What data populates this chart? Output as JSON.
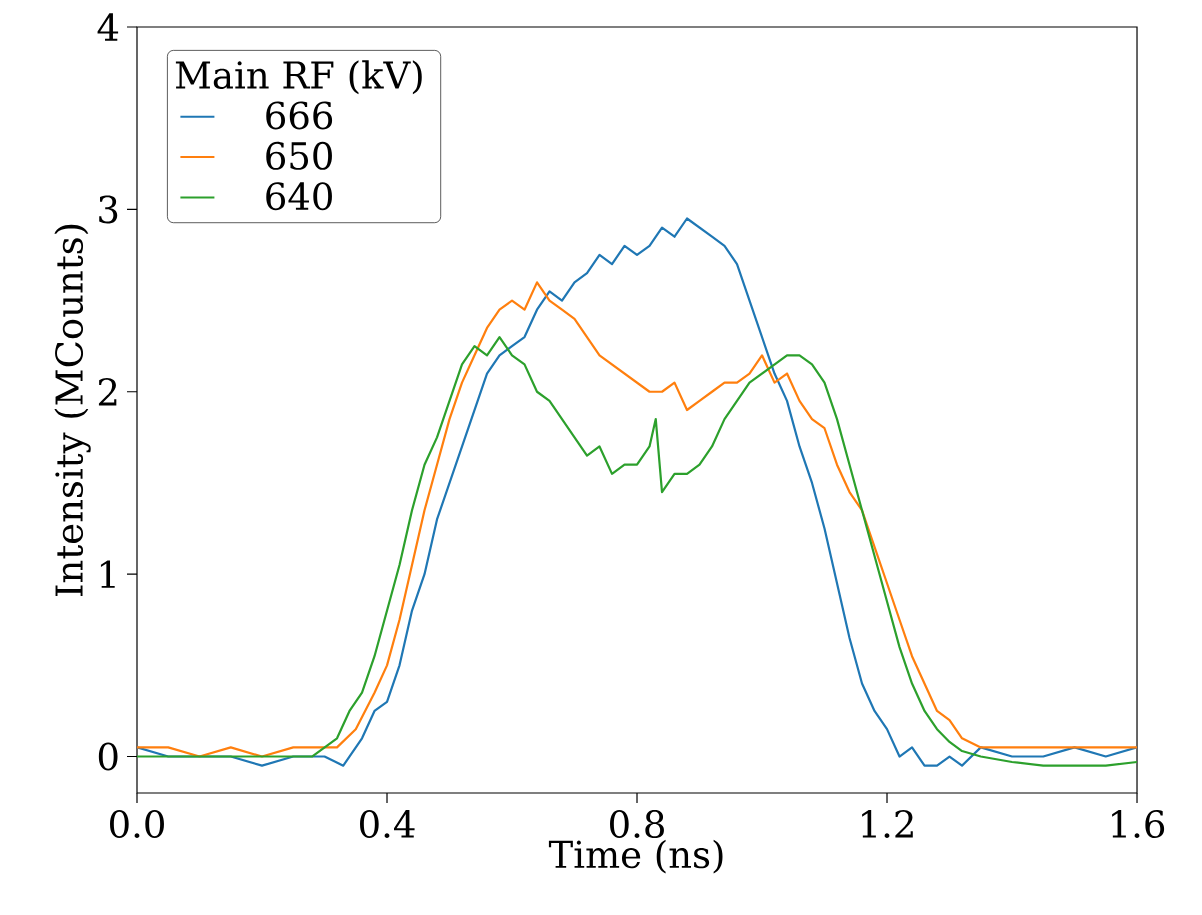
{
  "chart_data": {
    "type": "line",
    "xlabel": "Time (ns)",
    "ylabel": "Intensity (MCounts)",
    "legend_title": "Main RF (kV)",
    "legend": "top left",
    "grid": false,
    "marker": "none",
    "line_style": "solid",
    "xlim": [
      0,
      1.6
    ],
    "ylim": [
      -0.2,
      4
    ],
    "xticks": [
      {
        "value": 0,
        "label": "0.0"
      },
      {
        "value": 0.4,
        "label": "0.4"
      },
      {
        "value": 0.8,
        "label": "0.8"
      },
      {
        "value": 1.2,
        "label": "1.2"
      },
      {
        "value": 1.6,
        "label": "1.6"
      }
    ],
    "yticks": [
      0,
      1,
      2,
      3,
      4
    ],
    "series": [
      {
        "name": "666",
        "color": "#1f77b4",
        "x": [
          0,
          0.05,
          0.1,
          0.15,
          0.2,
          0.25,
          0.3,
          0.33,
          0.36,
          0.38,
          0.4,
          0.42,
          0.44,
          0.46,
          0.48,
          0.5,
          0.52,
          0.54,
          0.56,
          0.58,
          0.6,
          0.62,
          0.64,
          0.66,
          0.68,
          0.7,
          0.72,
          0.74,
          0.76,
          0.78,
          0.8,
          0.82,
          0.84,
          0.86,
          0.88,
          0.9,
          0.92,
          0.94,
          0.96,
          0.98,
          1.0,
          1.02,
          1.04,
          1.06,
          1.08,
          1.1,
          1.12,
          1.14,
          1.16,
          1.18,
          1.2,
          1.22,
          1.24,
          1.26,
          1.28,
          1.3,
          1.32,
          1.35,
          1.4,
          1.45,
          1.5,
          1.55,
          1.6
        ],
        "values": [
          0.05,
          0.0,
          0.0,
          0.0,
          -0.05,
          0.0,
          0.0,
          -0.05,
          0.1,
          0.25,
          0.3,
          0.5,
          0.8,
          1.0,
          1.3,
          1.5,
          1.7,
          1.9,
          2.1,
          2.2,
          2.25,
          2.3,
          2.45,
          2.55,
          2.5,
          2.6,
          2.65,
          2.75,
          2.7,
          2.8,
          2.75,
          2.8,
          2.9,
          2.85,
          2.95,
          2.9,
          2.85,
          2.8,
          2.7,
          2.5,
          2.3,
          2.1,
          1.95,
          1.7,
          1.5,
          1.25,
          0.95,
          0.65,
          0.4,
          0.25,
          0.15,
          0.0,
          0.05,
          -0.05,
          -0.05,
          0.0,
          -0.05,
          0.05,
          0.0,
          0.0,
          0.05,
          0.0,
          0.05
        ]
      },
      {
        "name": "650",
        "color": "#ff7f0e",
        "x": [
          0,
          0.05,
          0.1,
          0.15,
          0.2,
          0.25,
          0.3,
          0.32,
          0.35,
          0.38,
          0.4,
          0.42,
          0.44,
          0.46,
          0.48,
          0.5,
          0.52,
          0.54,
          0.56,
          0.58,
          0.6,
          0.62,
          0.64,
          0.66,
          0.68,
          0.7,
          0.72,
          0.74,
          0.76,
          0.78,
          0.8,
          0.82,
          0.84,
          0.86,
          0.88,
          0.9,
          0.92,
          0.94,
          0.96,
          0.98,
          1.0,
          1.02,
          1.04,
          1.06,
          1.08,
          1.1,
          1.12,
          1.14,
          1.16,
          1.18,
          1.2,
          1.22,
          1.24,
          1.26,
          1.28,
          1.3,
          1.32,
          1.35,
          1.4,
          1.45,
          1.5,
          1.55,
          1.6
        ],
        "values": [
          0.05,
          0.05,
          0.0,
          0.05,
          0.0,
          0.05,
          0.05,
          0.05,
          0.15,
          0.35,
          0.5,
          0.75,
          1.05,
          1.35,
          1.6,
          1.85,
          2.05,
          2.2,
          2.35,
          2.45,
          2.5,
          2.45,
          2.6,
          2.5,
          2.45,
          2.4,
          2.3,
          2.2,
          2.15,
          2.1,
          2.05,
          2.0,
          2.0,
          2.05,
          1.9,
          1.95,
          2.0,
          2.05,
          2.05,
          2.1,
          2.2,
          2.05,
          2.1,
          1.95,
          1.85,
          1.8,
          1.6,
          1.45,
          1.35,
          1.15,
          0.95,
          0.75,
          0.55,
          0.4,
          0.25,
          0.2,
          0.1,
          0.05,
          0.05,
          0.05,
          0.05,
          0.05,
          0.05
        ]
      },
      {
        "name": "640",
        "color": "#2ca02c",
        "x": [
          0,
          0.05,
          0.1,
          0.15,
          0.2,
          0.25,
          0.28,
          0.3,
          0.32,
          0.34,
          0.36,
          0.38,
          0.4,
          0.42,
          0.44,
          0.46,
          0.48,
          0.5,
          0.52,
          0.54,
          0.56,
          0.58,
          0.6,
          0.62,
          0.64,
          0.66,
          0.68,
          0.7,
          0.72,
          0.74,
          0.76,
          0.78,
          0.8,
          0.82,
          0.83,
          0.84,
          0.86,
          0.88,
          0.9,
          0.92,
          0.94,
          0.96,
          0.98,
          1.0,
          1.02,
          1.04,
          1.06,
          1.08,
          1.1,
          1.12,
          1.14,
          1.16,
          1.18,
          1.2,
          1.22,
          1.24,
          1.26,
          1.28,
          1.3,
          1.32,
          1.35,
          1.4,
          1.45,
          1.5,
          1.55,
          1.6
        ],
        "values": [
          0.0,
          0.0,
          0.0,
          0.0,
          0.0,
          0.0,
          0.0,
          0.05,
          0.1,
          0.25,
          0.35,
          0.55,
          0.8,
          1.05,
          1.35,
          1.6,
          1.75,
          1.95,
          2.15,
          2.25,
          2.2,
          2.3,
          2.2,
          2.15,
          2.0,
          1.95,
          1.85,
          1.75,
          1.65,
          1.7,
          1.55,
          1.6,
          1.6,
          1.7,
          1.85,
          1.45,
          1.55,
          1.55,
          1.6,
          1.7,
          1.85,
          1.95,
          2.05,
          2.1,
          2.15,
          2.2,
          2.2,
          2.15,
          2.05,
          1.85,
          1.6,
          1.35,
          1.1,
          0.85,
          0.6,
          0.4,
          0.25,
          0.15,
          0.08,
          0.03,
          0.0,
          -0.03,
          -0.05,
          -0.05,
          -0.05,
          -0.03
        ]
      }
    ]
  }
}
